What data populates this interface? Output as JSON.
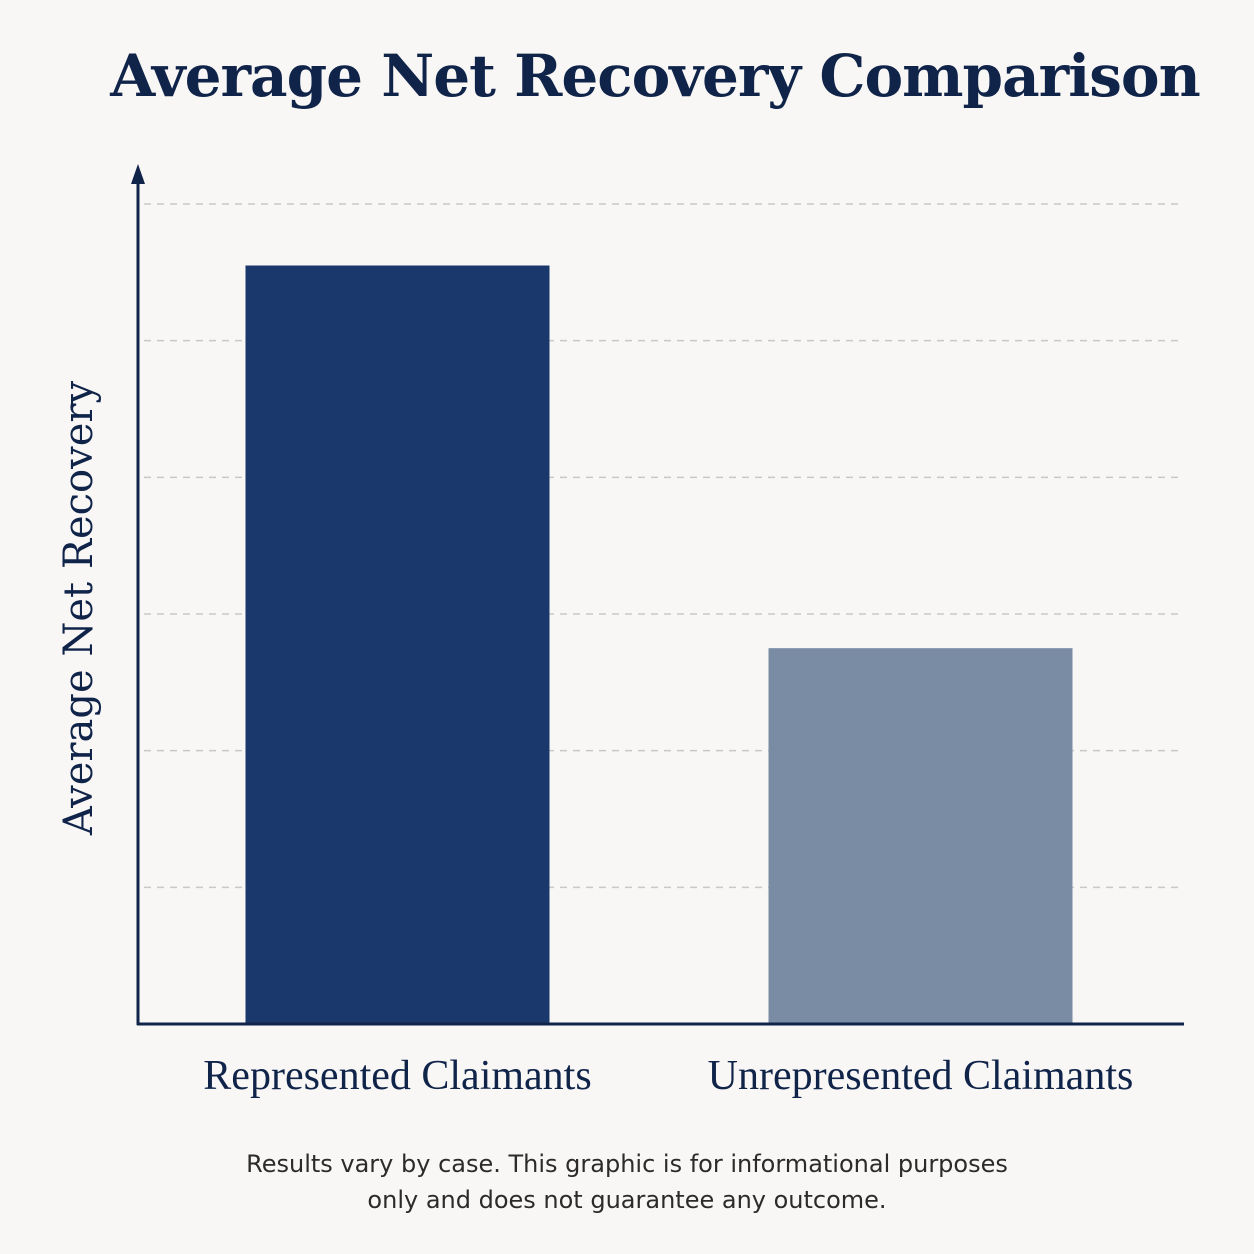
{
  "chart_data": {
    "type": "bar",
    "title": "Average Net Recovery Comparison",
    "ylabel": "Average Net Recovery",
    "xlabel": "",
    "categories": [
      "Represented Claimants",
      "Unrepresented Claimants"
    ],
    "values": [
      5.55,
      2.75
    ],
    "ylim": [
      0,
      6
    ],
    "grid": true,
    "y_ticks_labeled": false,
    "colors": [
      "#1a386b",
      "#7a8ca4"
    ],
    "axis_color": "#10244a",
    "grid_color": "#c8c8c8"
  },
  "footnote": {
    "line1": "Results vary by case. This graphic is for informational purposes",
    "line2": "only and does not guarantee any outcome."
  }
}
